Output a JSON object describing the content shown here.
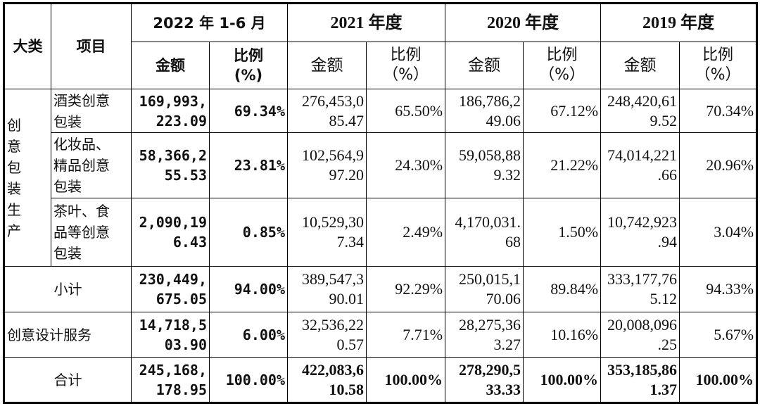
{
  "headers": {
    "category": "大类",
    "item": "项目",
    "periods": [
      "2022 年 1-6 月",
      "2021 年度",
      "2020 年度",
      "2019 年度"
    ],
    "amount": "金额",
    "ratio": "比例\n(%)",
    "ratio_serif": "比例\n（%）"
  },
  "category_name": "创 意\n包 装\n生产",
  "rows": [
    {
      "item": "酒类创意\n包装",
      "values": [
        "169,993,\n223.09",
        "69.34%",
        "276,453,0\n85.47",
        "65.50%",
        "186,786,2\n49.06",
        "67.12%",
        "248,420,61\n9.52",
        "70.34%"
      ]
    },
    {
      "item": "化妆品、\n精品创意\n包装",
      "values": [
        "58,366,2\n55.53",
        "23.81%",
        "102,564,9\n97.20",
        "24.30%",
        "59,058,88\n9.32",
        "21.22%",
        "74,014,221\n.66",
        "20.96%"
      ]
    },
    {
      "item": "茶叶、食\n品等创意\n包装",
      "values": [
        "2,090,19\n6.43",
        "0.85%",
        "10,529,30\n7.34",
        "2.49%",
        "4,170,031.\n68",
        "1.50%",
        "10,742,923\n.94",
        "3.04%"
      ]
    },
    {
      "item": "小计",
      "values": [
        "230,449,\n675.05",
        "94.00%",
        "389,547,3\n90.01",
        "92.29%",
        "250,015,1\n70.06",
        "89.84%",
        "333,177,76\n5.12",
        "94.33%"
      ]
    },
    {
      "item": "创意设计服务",
      "values": [
        "14,718,5\n03.90",
        "6.00%",
        "32,536,22\n0.57",
        "7.71%",
        "28,275,36\n3.27",
        "10.16%",
        "20,008,096\n.25",
        "5.67%"
      ]
    },
    {
      "item": "合计",
      "values": [
        "245,168,\n178.95",
        "100.00%",
        "422,083,6\n10.58",
        "100.00%",
        "278,290,5\n33.33",
        "100.00%",
        "353,185,86\n1.37",
        "100.00%"
      ]
    }
  ]
}
